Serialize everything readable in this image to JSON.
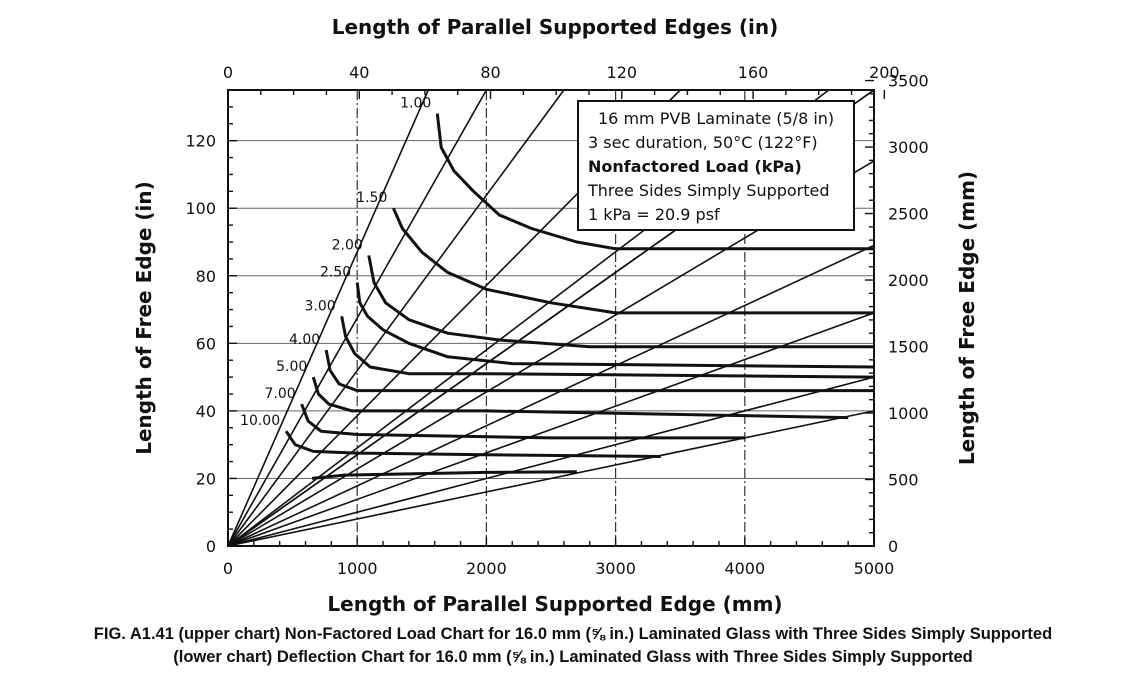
{
  "chart_data": {
    "type": "line",
    "title_top": "Length of Parallel Supported Edges (in)",
    "xlabel": "Length of Parallel Supported Edge (mm)",
    "ylabel_left": "Length of Free Edge (in)",
    "ylabel_right": "Length of Free Edge (mm)",
    "xlim_mm": [
      0,
      5000
    ],
    "xlim_in": [
      0,
      200
    ],
    "ylim_in": [
      0,
      135
    ],
    "ylim_mm": [
      0,
      3500
    ],
    "x_ticks_mm": [
      "0",
      "1000",
      "2000",
      "3000",
      "4000",
      "5000"
    ],
    "x_ticks_in": [
      "0",
      "40",
      "80",
      "120",
      "160",
      "200"
    ],
    "y_ticks_in": [
      "0",
      "20",
      "40",
      "60",
      "80",
      "100",
      "120"
    ],
    "y_ticks_mm": [
      "0",
      "500",
      "1000",
      "1500",
      "2000",
      "2500",
      "3000",
      "3500"
    ],
    "grid": "partial (dash-dot verticals at 1000, 2000, 3000, 4000 mm; horizontals at 20, 40, 60, 80, 100, 120 in)",
    "aspect_ratio_lines_x_mm_at_top": [
      1550,
      2000,
      2600,
      3500,
      4650,
      5000
    ],
    "aspect_ratio_lines_y_in_at_right": [
      135,
      114,
      89,
      69,
      50,
      40
    ],
    "series": [
      {
        "name": "1.00",
        "points_mm_in": [
          [
            1620,
            128
          ],
          [
            1650,
            118
          ],
          [
            1750,
            111
          ],
          [
            1900,
            105
          ],
          [
            2100,
            98
          ],
          [
            2350,
            94
          ],
          [
            2700,
            90
          ],
          [
            3000,
            88
          ],
          [
            3500,
            88
          ],
          [
            4000,
            88
          ],
          [
            5000,
            88
          ]
        ]
      },
      {
        "name": "1.50",
        "points_mm_in": [
          [
            1280,
            100
          ],
          [
            1350,
            94
          ],
          [
            1500,
            87
          ],
          [
            1700,
            81
          ],
          [
            2000,
            76
          ],
          [
            2500,
            72
          ],
          [
            3000,
            69
          ],
          [
            4000,
            69
          ],
          [
            5000,
            69
          ]
        ]
      },
      {
        "name": "2.00",
        "points_mm_in": [
          [
            1090,
            86
          ],
          [
            1130,
            78
          ],
          [
            1220,
            72
          ],
          [
            1400,
            67
          ],
          [
            1700,
            63
          ],
          [
            2100,
            61
          ],
          [
            2800,
            59
          ],
          [
            5000,
            59
          ]
        ]
      },
      {
        "name": "2.50",
        "points_mm_in": [
          [
            1000,
            78
          ],
          [
            1020,
            72
          ],
          [
            1080,
            68
          ],
          [
            1200,
            64
          ],
          [
            1400,
            60
          ],
          [
            1700,
            56
          ],
          [
            2200,
            54
          ],
          [
            5000,
            53
          ]
        ]
      },
      {
        "name": "3.00",
        "points_mm_in": [
          [
            880,
            68
          ],
          [
            910,
            62
          ],
          [
            980,
            57
          ],
          [
            1100,
            53
          ],
          [
            1400,
            51
          ],
          [
            2000,
            51
          ],
          [
            5000,
            50
          ]
        ]
      },
      {
        "name": "4.00",
        "points_mm_in": [
          [
            760,
            58
          ],
          [
            790,
            52
          ],
          [
            860,
            48
          ],
          [
            1000,
            46
          ],
          [
            1400,
            46
          ],
          [
            2500,
            46
          ],
          [
            5000,
            46
          ]
        ]
      },
      {
        "name": "5.00",
        "points_mm_in": [
          [
            660,
            50
          ],
          [
            700,
            45
          ],
          [
            780,
            42
          ],
          [
            960,
            40
          ],
          [
            2000,
            40
          ],
          [
            4800,
            38
          ]
        ]
      },
      {
        "name": "7.00",
        "points_mm_in": [
          [
            570,
            42
          ],
          [
            620,
            37
          ],
          [
            720,
            34
          ],
          [
            1000,
            33
          ],
          [
            2500,
            32
          ],
          [
            4000,
            32
          ]
        ]
      },
      {
        "name": "10.00",
        "points_mm_in": [
          [
            450,
            34
          ],
          [
            520,
            30
          ],
          [
            660,
            28
          ],
          [
            1000,
            27.5
          ],
          [
            2000,
            27
          ],
          [
            3350,
            26.5
          ]
        ]
      },
      {
        "name": "",
        "points_mm_in": [
          [
            650,
            20
          ],
          [
            900,
            21
          ],
          [
            1200,
            21.2
          ],
          [
            1600,
            21.5
          ],
          [
            2000,
            21.8
          ],
          [
            2700,
            22
          ]
        ]
      }
    ],
    "annotation_lines": [
      "16 mm PVB Laminate (5/8 in)",
      "3 sec duration, 50°C (122°F)",
      "Nonfactored Load (kPa)",
      "Three Sides Simply Supported",
      "1 kPa = 20.9 psf"
    ]
  },
  "caption": {
    "line1": "FIG. A1.41 (upper chart) Non-Factored Load Chart for 16.0 mm (⅝ in.) Laminated Glass with Three Sides Simply Supported",
    "line2": "(lower chart) Deflection Chart for 16.0 mm (⅝ in.) Laminated Glass with Three Sides Simply Supported"
  }
}
